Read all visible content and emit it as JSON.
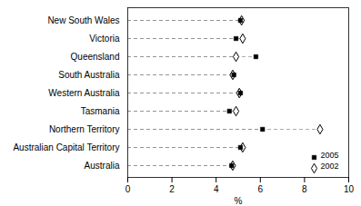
{
  "chart_data": {
    "type": "dot",
    "orientation": "horizontal",
    "categories": [
      "New South Wales",
      "Victoria",
      "Queensland",
      "South Australia",
      "Western Australia",
      "Tasmania",
      "Northern Territory",
      "Australian Capital Territory",
      "Australia"
    ],
    "series": [
      {
        "name": "2005",
        "color": "#000000",
        "marker": "square",
        "values": [
          5.1,
          4.9,
          5.8,
          4.8,
          5.1,
          4.6,
          6.1,
          5.1,
          4.7
        ]
      },
      {
        "name": "2002",
        "color": "#000000",
        "marker": "open_diamond",
        "values": [
          5.15,
          5.2,
          4.9,
          4.75,
          5.05,
          4.9,
          8.7,
          5.2,
          4.75
        ]
      }
    ],
    "xlabel": "%",
    "xlim": [
      0,
      10
    ],
    "xticks": [
      0,
      2,
      4,
      6,
      8,
      10
    ],
    "grid": false,
    "legend": "lower right"
  }
}
